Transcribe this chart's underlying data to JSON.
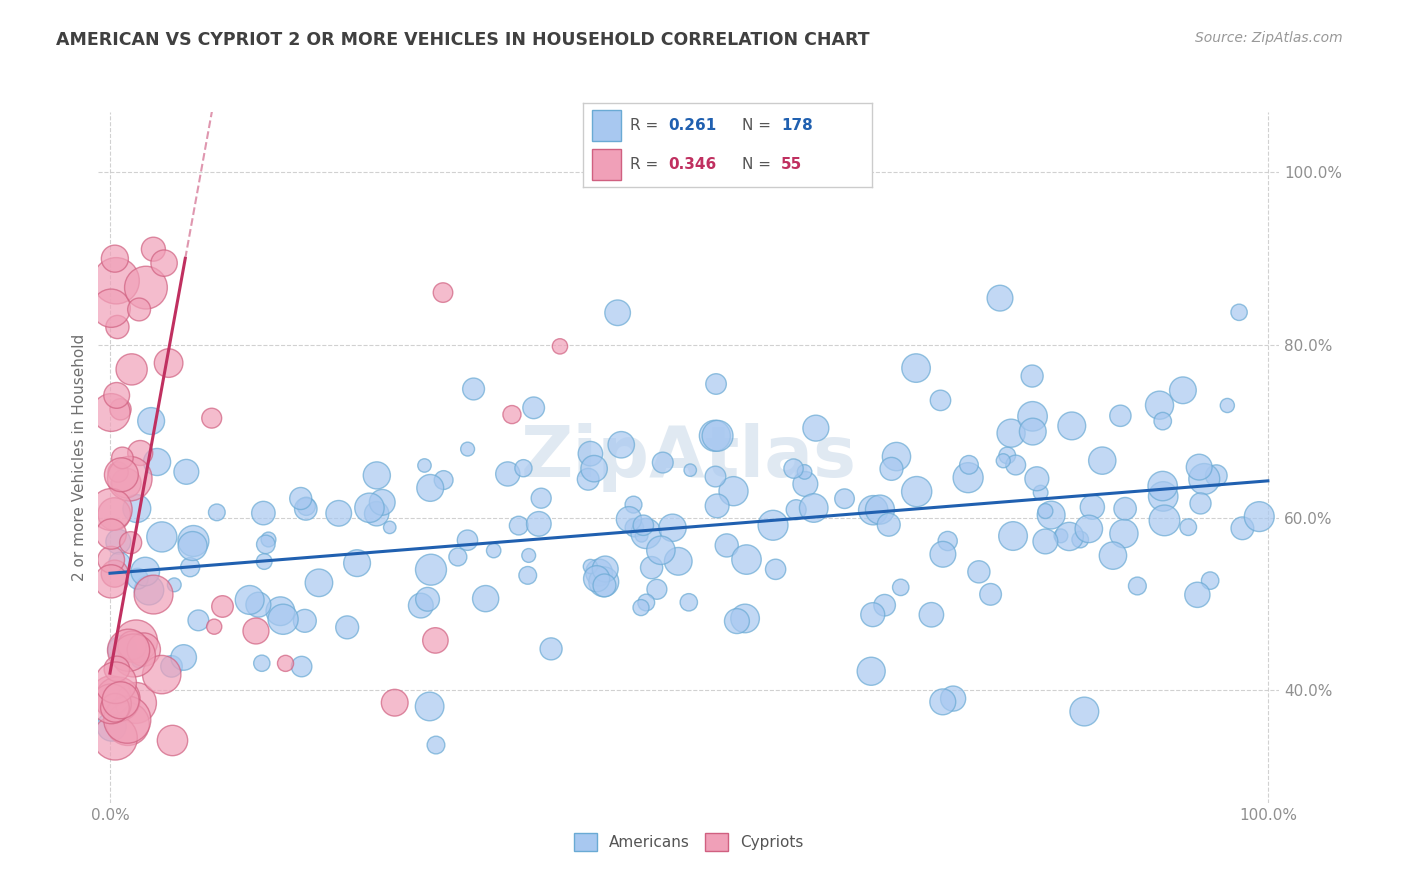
{
  "title": "AMERICAN VS CYPRIOT 2 OR MORE VEHICLES IN HOUSEHOLD CORRELATION CHART",
  "source": "Source: ZipAtlas.com",
  "ylabel": "2 or more Vehicles in Household",
  "r_american": 0.261,
  "n_american": 178,
  "r_cypriot": 0.346,
  "n_cypriot": 55,
  "american_color": "#a8c8f0",
  "american_edge_color": "#6aaad4",
  "cypriot_color": "#f0a0b8",
  "cypriot_edge_color": "#d06080",
  "trend_american_color": "#2060b0",
  "trend_cypriot_color": "#c03060",
  "background_color": "#ffffff",
  "tick_label_color": "#909090",
  "axis_label_color": "#707070",
  "title_color": "#404040",
  "watermark_color": "#c8d8e8"
}
